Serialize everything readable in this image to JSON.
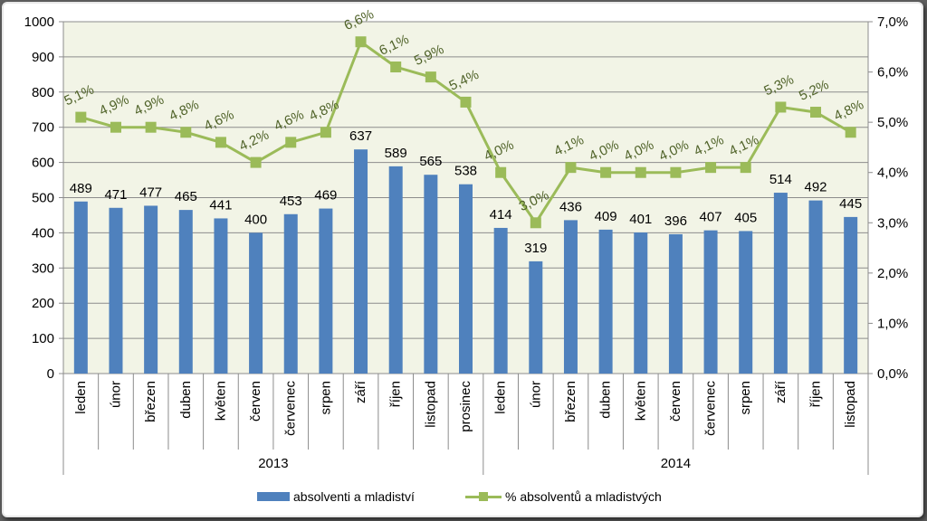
{
  "chart_data": {
    "type": "bar",
    "categories": [
      "leden",
      "únor",
      "březen",
      "duben",
      "květen",
      "červen",
      "červenec",
      "srpen",
      "září",
      "říjen",
      "listopad",
      "prosinec",
      "leden",
      "únor",
      "březen",
      "duben",
      "květen",
      "červen",
      "červenec",
      "srpen",
      "září",
      "říjen",
      "listopad"
    ],
    "groups": [
      {
        "label": "2013",
        "count": 12
      },
      {
        "label": "2014",
        "count": 11
      }
    ],
    "series": [
      {
        "name": "absolventi a mladiství",
        "type": "bar",
        "axis": "left",
        "values": [
          489,
          471,
          477,
          465,
          441,
          400,
          453,
          469,
          637,
          589,
          565,
          538,
          414,
          319,
          436,
          409,
          401,
          396,
          407,
          405,
          514,
          492,
          445
        ],
        "labels": [
          "489",
          "471",
          "477",
          "465",
          "441",
          "400",
          "453",
          "469",
          "637",
          "589",
          "565",
          "538",
          "414",
          "319",
          "436",
          "409",
          "401",
          "396",
          "407",
          "405",
          "514",
          "492",
          "445"
        ]
      },
      {
        "name": "% absolventů a mladistvých",
        "type": "line",
        "axis": "right",
        "values": [
          5.1,
          4.9,
          4.9,
          4.8,
          4.6,
          4.2,
          4.6,
          4.8,
          6.6,
          6.1,
          5.9,
          5.4,
          4.0,
          3.0,
          4.1,
          4.0,
          4.0,
          4.0,
          4.1,
          4.1,
          5.3,
          5.2,
          4.8
        ],
        "labels": [
          "5,1%",
          "4,9%",
          "4,9%",
          "4,8%",
          "4,6%",
          "4,2%",
          "4,6%",
          "4,8%",
          "6,6%",
          "6,1%",
          "5,9%",
          "5,4%",
          "4,0%",
          "3,0%",
          "4,1%",
          "4,0%",
          "4,0%",
          "4,0%",
          "4,1%",
          "4,1%",
          "5,3%",
          "5,2%",
          "4,8%"
        ]
      }
    ],
    "ylim": [
      0,
      1000
    ],
    "yticks": [
      "0",
      "100",
      "200",
      "300",
      "400",
      "500",
      "600",
      "700",
      "800",
      "900",
      "1000"
    ],
    "y2lim": [
      0,
      7.0
    ],
    "y2ticks": [
      "0,0%",
      "1,0%",
      "2,0%",
      "3,0%",
      "4,0%",
      "5,0%",
      "6,0%",
      "7,0%"
    ],
    "grid": true,
    "legend_position": "bottom",
    "colors": {
      "bar": "#4f81bd",
      "line": "#9bbb59",
      "plot_bg": "#f2f4e6",
      "label_line": "#4f6228"
    }
  },
  "legend": {
    "bar_label": "absolventi a mladiství",
    "line_label": "% absolventů a mladistvých"
  }
}
